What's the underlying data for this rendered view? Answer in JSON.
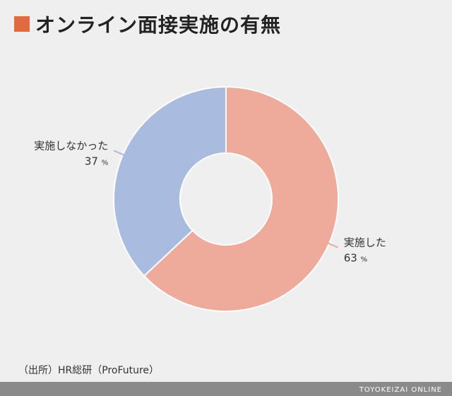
{
  "title": "オンライン面接実施の有無",
  "colors": {
    "accent": "#e06a42",
    "implemented": "#eeaa9b",
    "not_implemented": "#aabbe0",
    "footer_bg": "#8a8a8a",
    "leader": "#8a8a8a"
  },
  "chart_data": {
    "type": "pie",
    "donut": true,
    "slices": [
      {
        "label": "実施した",
        "value": 63,
        "unit": "%"
      },
      {
        "label": "実施しなかった",
        "value": 37,
        "unit": "%"
      }
    ]
  },
  "source": "（出所）HR総研（ProFuture）",
  "footer": "TOYOKEIZAI ONLINE"
}
